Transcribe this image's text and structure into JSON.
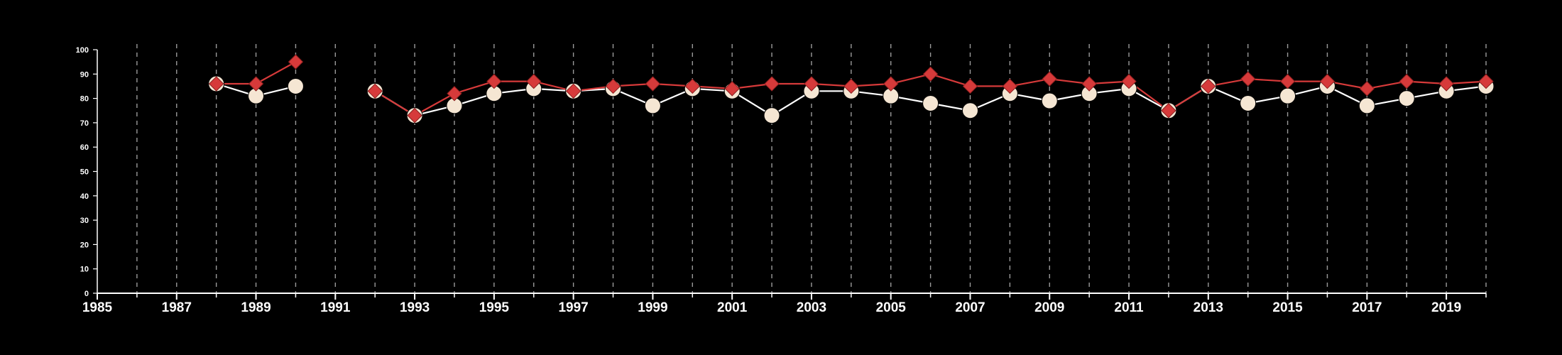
{
  "chart_data": {
    "type": "line",
    "title": "",
    "xlabel": "",
    "ylabel": "",
    "xlim": [
      1985,
      2020
    ],
    "ylim": [
      0,
      100
    ],
    "x_ticks": [
      "1985",
      "1987",
      "1989",
      "1991",
      "1993",
      "1995",
      "1997",
      "1999",
      "2001",
      "2003",
      "2005",
      "2007",
      "2009",
      "2011",
      "2013",
      "2015",
      "2017",
      "2019"
    ],
    "y_ticks": [
      "0",
      "10",
      "20",
      "30",
      "40",
      "50",
      "60",
      "70",
      "80",
      "90",
      "100"
    ],
    "grid": "vertical dashed lines at each year",
    "background": "#000000",
    "series": [
      {
        "marker": "circle",
        "color": "#f5e6d3",
        "line_color": "#ffffff",
        "points": [
          [
            1988,
            86
          ],
          [
            1989,
            81
          ],
          [
            1990,
            85
          ],
          [
            1992,
            83
          ],
          [
            1993,
            73
          ],
          [
            1994,
            77
          ],
          [
            1995,
            82
          ],
          [
            1996,
            84
          ],
          [
            1997,
            83
          ],
          [
            1998,
            84
          ],
          [
            1999,
            77
          ],
          [
            2000,
            84
          ],
          [
            2001,
            83
          ],
          [
            2002,
            73
          ],
          [
            2003,
            83
          ],
          [
            2004,
            83
          ],
          [
            2005,
            81
          ],
          [
            2006,
            78
          ],
          [
            2007,
            75
          ],
          [
            2008,
            82
          ],
          [
            2009,
            79
          ],
          [
            2010,
            82
          ],
          [
            2011,
            84
          ],
          [
            2012,
            75
          ],
          [
            2013,
            85
          ],
          [
            2014,
            78
          ],
          [
            2015,
            81
          ],
          [
            2016,
            85
          ],
          [
            2017,
            77
          ],
          [
            2018,
            80
          ],
          [
            2019,
            83
          ],
          [
            2020,
            85
          ]
        ]
      },
      {
        "marker": "diamond",
        "color": "#d63a3a",
        "line_color": "#d63a3a",
        "points": [
          [
            1988,
            86
          ],
          [
            1989,
            86
          ],
          [
            1990,
            95
          ],
          [
            1992,
            83
          ],
          [
            1993,
            73
          ],
          [
            1994,
            82
          ],
          [
            1995,
            87
          ],
          [
            1996,
            87
          ],
          [
            1997,
            83
          ],
          [
            1998,
            85
          ],
          [
            1999,
            86
          ],
          [
            2000,
            85
          ],
          [
            2001,
            84
          ],
          [
            2002,
            86
          ],
          [
            2003,
            86
          ],
          [
            2004,
            85
          ],
          [
            2005,
            86
          ],
          [
            2006,
            90
          ],
          [
            2007,
            85
          ],
          [
            2008,
            85
          ],
          [
            2009,
            88
          ],
          [
            2010,
            86
          ],
          [
            2011,
            87
          ],
          [
            2012,
            75
          ],
          [
            2013,
            85
          ],
          [
            2014,
            88
          ],
          [
            2015,
            87
          ],
          [
            2016,
            87
          ],
          [
            2017,
            84
          ],
          [
            2018,
            87
          ],
          [
            2019,
            86
          ],
          [
            2020,
            87
          ]
        ]
      }
    ]
  }
}
